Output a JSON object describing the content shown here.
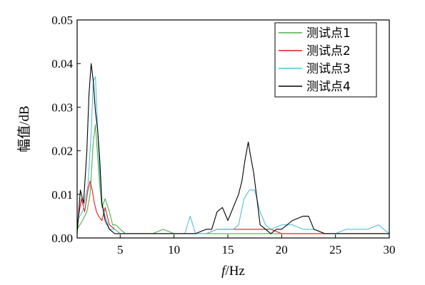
{
  "chart_data": {
    "type": "line",
    "title": "",
    "xlabel_italic": "f",
    "xlabel_rest": "/Hz",
    "ylabel": "幅值/dB",
    "xlim": [
      1,
      30
    ],
    "ylim": [
      0,
      0.05
    ],
    "xticks": [
      5,
      10,
      15,
      20,
      25,
      30
    ],
    "xtick_labels": [
      "5",
      "10",
      "15",
      "20",
      "25",
      "30"
    ],
    "yticks": [
      0,
      0.01,
      0.02,
      0.03,
      0.04,
      0.05
    ],
    "ytick_labels": [
      "0.00",
      "0.01",
      "0.02",
      "0.03",
      "0.04",
      "0.05"
    ],
    "grid": false,
    "legend_position": "top-right",
    "series": [
      {
        "name": "测试点1",
        "color": "#4daf4a",
        "x": [
          1.0,
          1.5,
          1.9,
          2.2,
          2.5,
          2.7,
          2.9,
          3.1,
          3.3,
          3.6,
          4.0,
          4.3,
          4.6,
          5.0,
          5.5,
          6.0,
          7.0,
          8.0,
          9.0,
          10.0,
          11.0,
          12.0,
          13.0,
          14.0,
          15.0,
          16.0,
          17.0,
          18.0,
          19.0,
          20.0,
          21.0,
          22.0,
          23.0,
          24.0,
          25.0,
          26.0,
          27.0,
          28.0,
          29.0,
          30.0
        ],
        "y": [
          0.002,
          0.004,
          0.006,
          0.01,
          0.022,
          0.026,
          0.019,
          0.012,
          0.007,
          0.009,
          0.006,
          0.003,
          0.003,
          0.002,
          0.001,
          0.001,
          0.001,
          0.001,
          0.002,
          0.001,
          0.001,
          0.001,
          0.001,
          0.001,
          0.001,
          0.001,
          0.001,
          0.001,
          0.001,
          0.001,
          0.001,
          0.001,
          0.001,
          0.001,
          0.001,
          0.001,
          0.001,
          0.001,
          0.001,
          0.001
        ]
      },
      {
        "name": "测试点2",
        "color": "#e41a1c",
        "x": [
          1.0,
          1.4,
          1.7,
          2.0,
          2.2,
          2.4,
          2.6,
          2.8,
          3.0,
          3.3,
          3.6,
          4.0,
          4.5,
          5.0,
          6.0,
          7.0,
          8.0,
          9.0,
          10.0,
          11.0,
          12.0,
          13.0,
          14.0,
          15.0,
          16.0,
          17.0,
          18.0,
          19.0,
          20.0,
          21.0,
          22.0,
          23.0,
          24.0,
          25.0,
          26.0,
          27.0,
          28.0,
          29.0,
          30.0
        ],
        "y": [
          0.003,
          0.009,
          0.006,
          0.011,
          0.013,
          0.011,
          0.008,
          0.006,
          0.005,
          0.004,
          0.007,
          0.003,
          0.002,
          0.001,
          0.001,
          0.001,
          0.001,
          0.001,
          0.001,
          0.001,
          0.001,
          0.001,
          0.002,
          0.002,
          0.002,
          0.002,
          0.002,
          0.002,
          0.001,
          0.001,
          0.001,
          0.001,
          0.001,
          0.001,
          0.001,
          0.001,
          0.001,
          0.001,
          0.001
        ]
      },
      {
        "name": "测试点3",
        "color": "#4fc3d9",
        "x": [
          1.0,
          1.5,
          2.0,
          2.3,
          2.5,
          2.7,
          2.9,
          3.1,
          3.3,
          3.6,
          4.0,
          4.5,
          5.0,
          6.0,
          7.0,
          8.0,
          9.0,
          10.0,
          11.0,
          11.5,
          12.0,
          13.0,
          14.0,
          15.0,
          15.5,
          16.0,
          16.5,
          17.0,
          17.5,
          18.0,
          18.5,
          19.0,
          20.0,
          21.0,
          22.0,
          23.0,
          24.0,
          25.0,
          26.0,
          27.0,
          28.0,
          29.0,
          30.0
        ],
        "y": [
          0.004,
          0.006,
          0.012,
          0.024,
          0.036,
          0.037,
          0.025,
          0.015,
          0.008,
          0.005,
          0.002,
          0.002,
          0.001,
          0.001,
          0.001,
          0.001,
          0.001,
          0.001,
          0.001,
          0.005,
          0.001,
          0.001,
          0.002,
          0.002,
          0.002,
          0.003,
          0.009,
          0.011,
          0.011,
          0.006,
          0.003,
          0.002,
          0.003,
          0.003,
          0.002,
          0.002,
          0.001,
          0.001,
          0.002,
          0.002,
          0.002,
          0.003,
          0.001
        ]
      },
      {
        "name": "测试点4",
        "color": "#000000",
        "x": [
          1.0,
          1.3,
          1.6,
          1.9,
          2.1,
          2.3,
          2.5,
          2.7,
          2.9,
          3.1,
          3.3,
          3.6,
          4.0,
          4.5,
          5.0,
          6.0,
          7.0,
          8.0,
          9.0,
          10.0,
          11.0,
          12.0,
          13.0,
          13.5,
          14.0,
          14.5,
          15.0,
          15.5,
          16.0,
          16.3,
          16.6,
          16.9,
          17.1,
          17.4,
          17.7,
          18.0,
          18.5,
          19.0,
          19.5,
          20.0,
          21.0,
          22.0,
          22.5,
          23.0,
          24.0,
          25.0,
          26.0,
          27.0,
          28.0,
          29.0,
          30.0
        ],
        "y": [
          0.001,
          0.011,
          0.008,
          0.02,
          0.033,
          0.04,
          0.036,
          0.029,
          0.025,
          0.018,
          0.008,
          0.004,
          0.002,
          0.001,
          0.001,
          0.001,
          0.001,
          0.001,
          0.001,
          0.001,
          0.001,
          0.001,
          0.002,
          0.002,
          0.006,
          0.007,
          0.004,
          0.007,
          0.01,
          0.013,
          0.018,
          0.022,
          0.019,
          0.015,
          0.009,
          0.003,
          0.002,
          0.001,
          0.002,
          0.002,
          0.004,
          0.005,
          0.005,
          0.002,
          0.001,
          0.001,
          0.001,
          0.001,
          0.001,
          0.001,
          0.001
        ]
      }
    ]
  }
}
